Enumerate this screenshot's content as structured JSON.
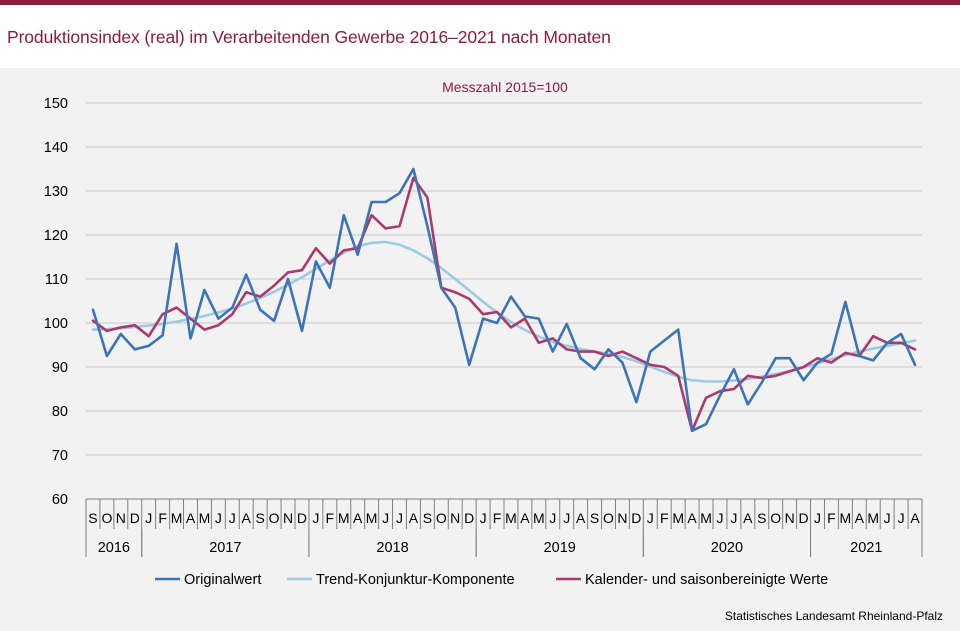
{
  "title": "Produktionsindex (real) im Verarbeitenden Gewerbe 2016–2021 nach Monaten",
  "subtitle": "Messzahl  2015=100",
  "source": "Statistisches Landesamt  Rheinland-Pfalz",
  "colors": {
    "brand": "#8c1d3a",
    "original": "#3d74b8",
    "trend": "#9ccae0",
    "adjusted": "#ab3a6c"
  },
  "chart_data": {
    "type": "line",
    "ylim": [
      60,
      150
    ],
    "yticks": [
      60,
      70,
      80,
      90,
      100,
      110,
      120,
      130,
      140,
      150
    ],
    "months": [
      "S",
      "O",
      "N",
      "D",
      "J",
      "F",
      "M",
      "A",
      "M",
      "J",
      "J",
      "A",
      "S",
      "O",
      "N",
      "D",
      "J",
      "F",
      "M",
      "A",
      "M",
      "J",
      "J",
      "A",
      "S",
      "O",
      "N",
      "D",
      "J",
      "F",
      "M",
      "A",
      "M",
      "J",
      "J",
      "A",
      "S",
      "O",
      "N",
      "D",
      "J",
      "F",
      "M",
      "A",
      "M",
      "J",
      "J",
      "A",
      "S",
      "O",
      "N",
      "D",
      "J",
      "F",
      "M",
      "A",
      "M",
      "J",
      "J",
      "A"
    ],
    "years": [
      {
        "label": "2016",
        "start": 0,
        "end": 4
      },
      {
        "label": "2017",
        "start": 4,
        "end": 16
      },
      {
        "label": "2018",
        "start": 16,
        "end": 28
      },
      {
        "label": "2019",
        "start": 28,
        "end": 40
      },
      {
        "label": "2020",
        "start": 40,
        "end": 52
      },
      {
        "label": "2021",
        "start": 52,
        "end": 60
      }
    ],
    "series": [
      {
        "name": "Originalwert",
        "color": "#3d74b8",
        "values": [
          103,
          92.5,
          97.5,
          94,
          94.8,
          97.2,
          118,
          96.5,
          107.5,
          101,
          103.5,
          111,
          103,
          100.5,
          110,
          98.2,
          114,
          108,
          124.5,
          115.5,
          127.5,
          127.5,
          129.5,
          135,
          122,
          108,
          103.5,
          90.5,
          101,
          100,
          106,
          101.5,
          101,
          93.5,
          99.8,
          92,
          89.5,
          94,
          91,
          82,
          93.5,
          96,
          98.5,
          75.5,
          77,
          83.5,
          89.5,
          81.5,
          86.5,
          92,
          92,
          87,
          91,
          93,
          104.8,
          92.5,
          91.5,
          95.5,
          97.5,
          90.5
        ]
      },
      {
        "name": "Trend-Konjunktur-Komponente",
        "color": "#9ccae0",
        "values": [
          98.5,
          98.6,
          98.8,
          99.1,
          99.4,
          99.8,
          100.3,
          100.9,
          101.6,
          102.4,
          103.3,
          104.4,
          105.7,
          107.1,
          108.7,
          110.4,
          112.3,
          114.2,
          116,
          117.4,
          118.2,
          118.4,
          117.8,
          116.5,
          114.7,
          112.5,
          110,
          107.4,
          104.8,
          102.4,
          100.2,
          98.4,
          96.9,
          95.7,
          94.8,
          94.1,
          93.5,
          93,
          92.3,
          91.3,
          90.1,
          88.9,
          87.8,
          87,
          86.7,
          86.7,
          86.9,
          87.3,
          87.8,
          88.4,
          89.1,
          89.9,
          90.8,
          91.8,
          92.7,
          93.5,
          94.2,
          94.8,
          95.4,
          96
        ]
      },
      {
        "name": "Kalender- und saisonbereinigte Werte",
        "color": "#ab3a6c",
        "values": [
          100.5,
          98.2,
          99,
          99.5,
          97,
          102,
          103.5,
          101,
          98.5,
          99.5,
          102,
          107,
          106,
          108.5,
          111.5,
          112,
          117,
          113.5,
          116.5,
          117,
          124.5,
          121.5,
          122,
          133,
          128.5,
          108,
          107,
          105.5,
          102,
          102.5,
          99,
          101,
          95.5,
          96.5,
          94,
          93.5,
          93.5,
          92.5,
          93.5,
          92,
          90.5,
          90,
          88,
          75.5,
          83,
          84.5,
          85,
          88,
          87.5,
          88,
          89,
          90,
          92,
          91,
          93.2,
          92.5,
          97,
          95.5,
          95.5,
          94
        ]
      }
    ]
  }
}
